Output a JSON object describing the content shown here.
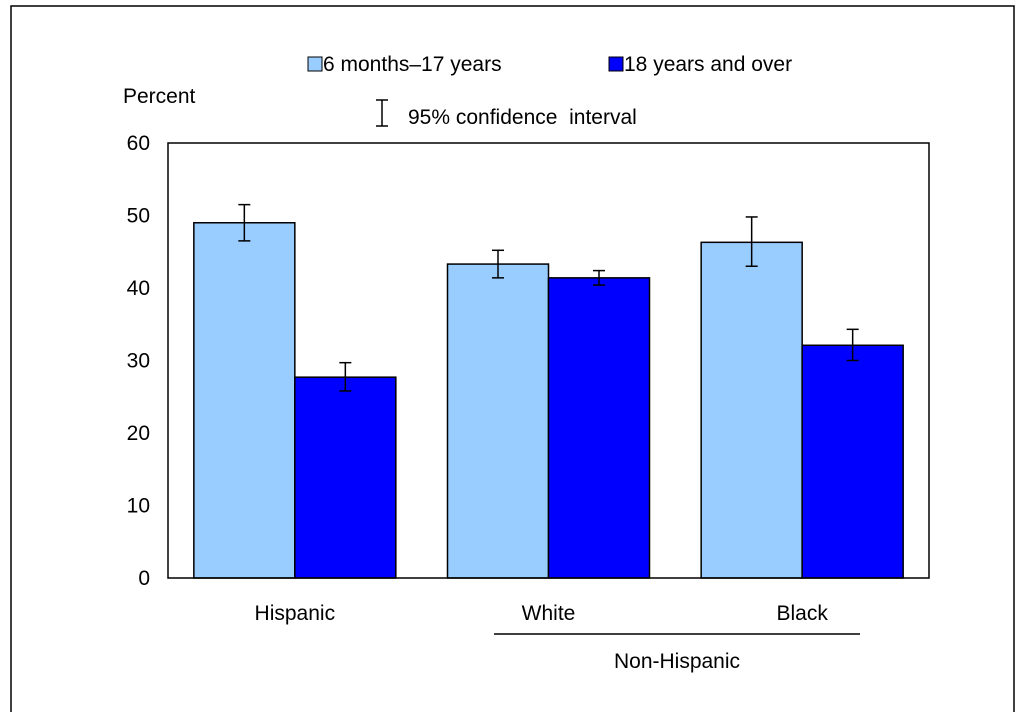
{
  "colors": {
    "series_1": "#99ccff",
    "series_2": "#0000ff",
    "border": "#000000"
  },
  "legend": {
    "items": [
      "6 months–17 years",
      "18 years and over"
    ],
    "ci_label": "95% confidence  interval",
    "placement": "top"
  },
  "chart_data": {
    "type": "bar",
    "ylabel": "Percent",
    "xlabel": "",
    "ylim": [
      0,
      60
    ],
    "yticks": [
      "0",
      "10",
      "20",
      "30",
      "40",
      "50",
      "60"
    ],
    "categories": [
      "Hispanic",
      "White",
      "Black"
    ],
    "group_label": "Non-Hispanic",
    "group_categories": [
      "White",
      "Black"
    ],
    "series": [
      {
        "name": "6 months–17 years",
        "values": [
          49.0,
          43.3,
          46.3
        ],
        "ci_low": [
          46.5,
          41.4,
          43.0
        ],
        "ci_high": [
          51.5,
          45.2,
          49.8
        ]
      },
      {
        "name": "18 years and over",
        "values": [
          27.7,
          41.4,
          32.1
        ],
        "ci_low": [
          25.8,
          40.4,
          30.0
        ],
        "ci_high": [
          29.7,
          42.4,
          34.3
        ]
      }
    ],
    "grid": false
  }
}
